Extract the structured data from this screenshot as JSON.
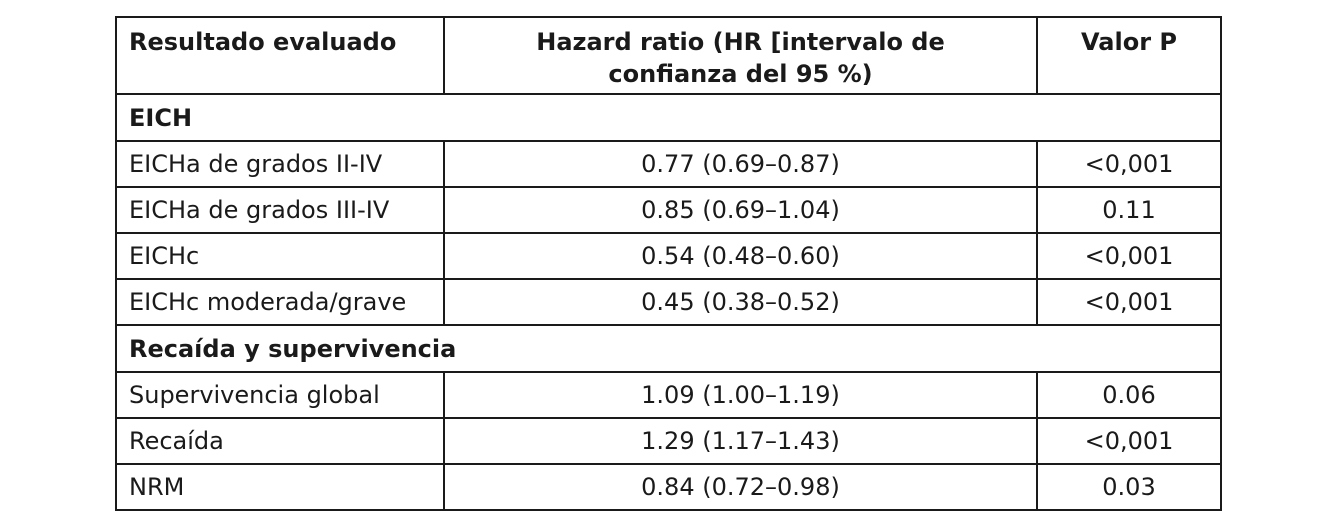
{
  "headers": {
    "outcome": "Resultado evaluado",
    "hr_line1": "Hazard ratio (HR [intervalo de",
    "hr_line2": "confianza del 95 %)",
    "p": "Valor P"
  },
  "sections": [
    {
      "title": "EICH",
      "rows": [
        {
          "outcome": "EICHa de grados II-IV",
          "hr": "0.77 (0.69–0.87)",
          "p": "<0,001"
        },
        {
          "outcome": "EICHa de grados III-IV",
          "hr": "0.85 (0.69–1.04)",
          "p": "0.11"
        },
        {
          "outcome": "EICHc",
          "hr": "0.54 (0.48–0.60)",
          "p": "<0,001"
        },
        {
          "outcome": "EICHc moderada/grave",
          "hr": "0.45 (0.38–0.52)",
          "p": "<0,001"
        }
      ]
    },
    {
      "title": "Recaída y supervivencia",
      "rows": [
        {
          "outcome": "Supervivencia global",
          "hr": "1.09 (1.00–1.19)",
          "p": "0.06"
        },
        {
          "outcome": "Recaída",
          "hr": "1.29 (1.17–1.43)",
          "p": "<0,001"
        },
        {
          "outcome": "NRM",
          "hr": "0.84 (0.72–0.98)",
          "p": "0.03"
        }
      ]
    }
  ]
}
